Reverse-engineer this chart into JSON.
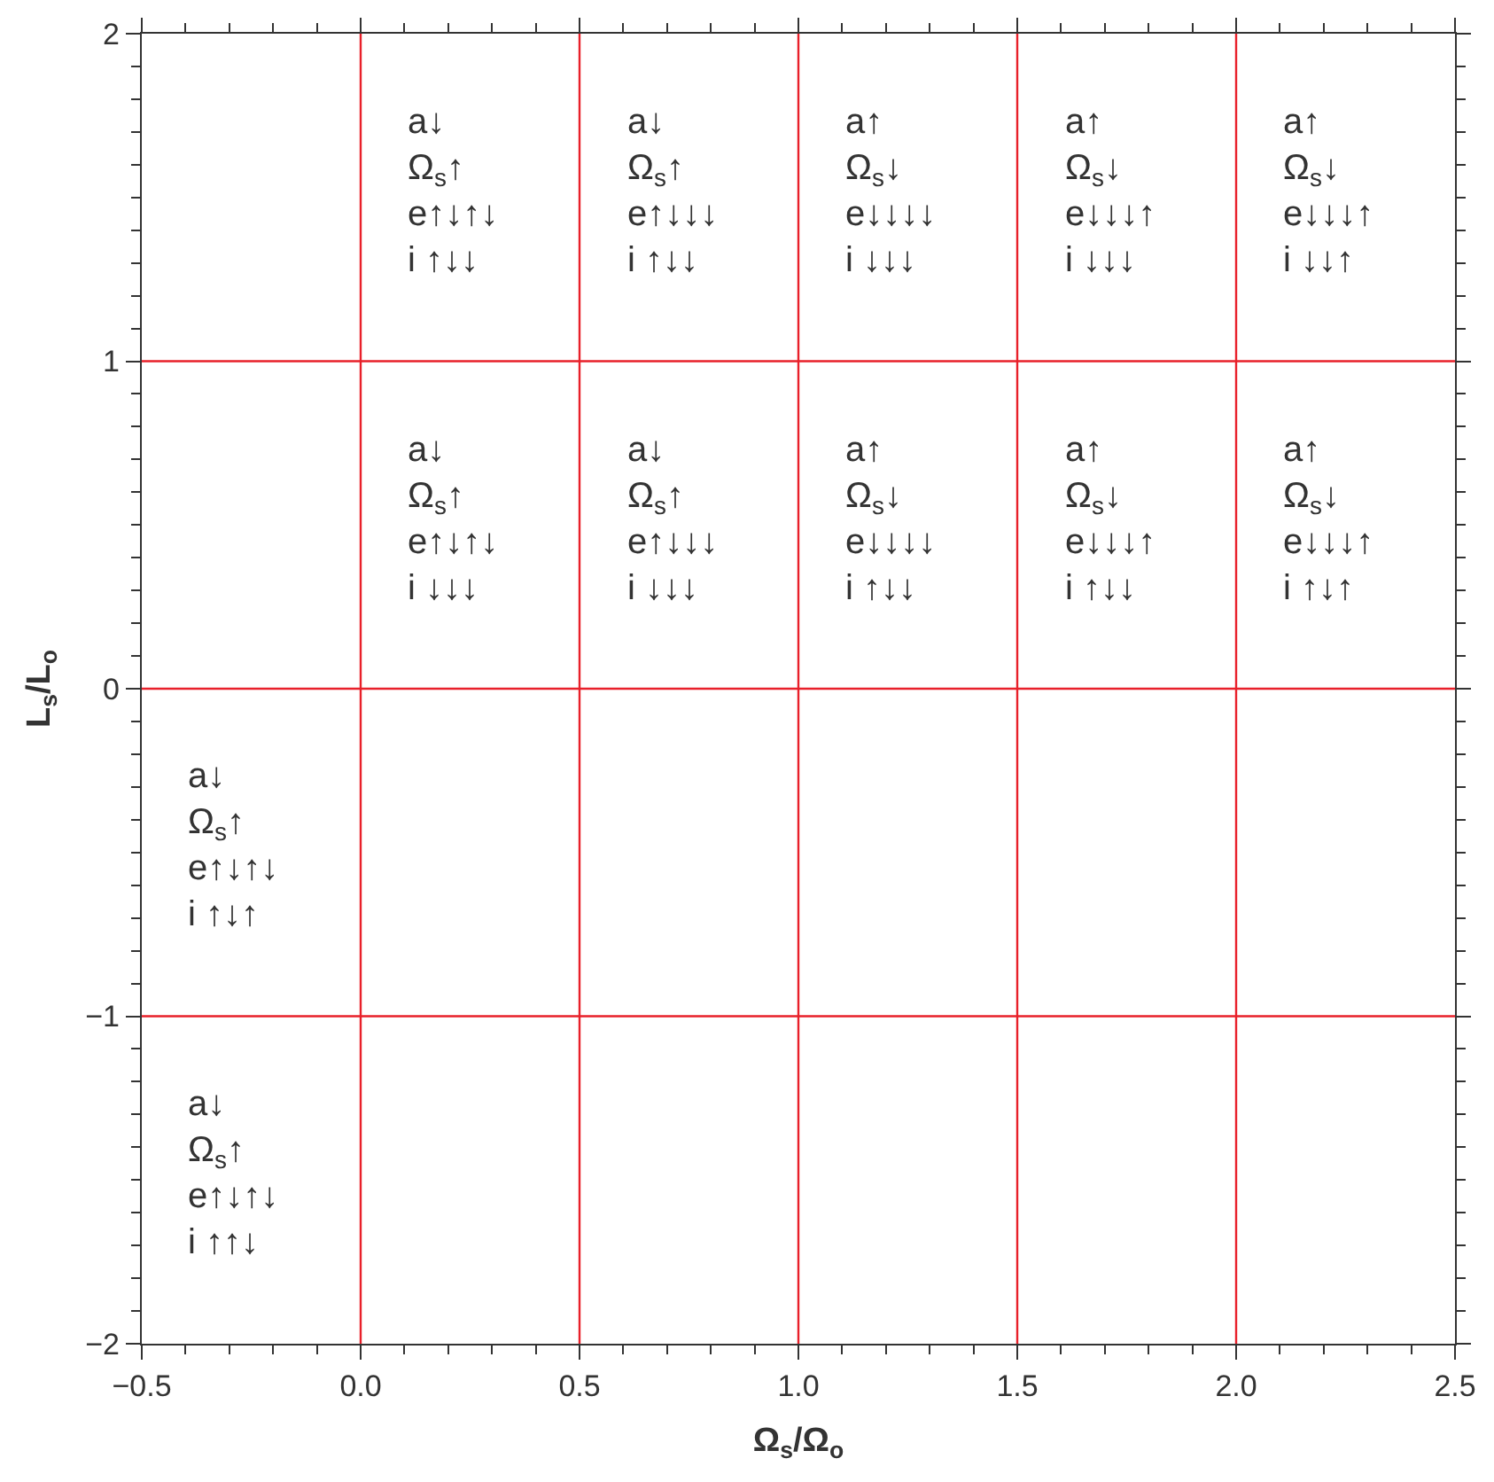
{
  "chart_data": {
    "type": "scatter",
    "xlabel": "Ω$_{s}$/Ω$_{o}$",
    "ylabel": "L$_{s}$/L$_{o}$",
    "xlim": [
      -0.5,
      2.5
    ],
    "ylim": [
      -2,
      2
    ],
    "xticks": [
      {
        "value": -0.5,
        "label": "−0.5"
      },
      {
        "value": 0,
        "label": "0.0"
      },
      0.5,
      {
        "value": 1,
        "label": "1.0"
      },
      1.5,
      {
        "value": 2,
        "label": "2.0"
      },
      2.5
    ],
    "yticks": [
      {
        "value": -2,
        "label": "−2"
      },
      {
        "value": -1,
        "label": "−1"
      },
      0,
      1,
      2
    ],
    "ref_lines": [
      {
        "axis": "x",
        "value": 0,
        "color": "#e8202a"
      },
      {
        "axis": "x",
        "value": 0.5,
        "color": "#e8202a"
      },
      {
        "axis": "x",
        "value": 1,
        "color": "#e8202a"
      },
      {
        "axis": "x",
        "value": 1.5,
        "color": "#e8202a"
      },
      {
        "axis": "x",
        "value": 2,
        "color": "#e8202a"
      },
      {
        "axis": "y",
        "value": 1,
        "color": "#e8202a"
      },
      {
        "axis": "y",
        "value": 0,
        "color": "#e8202a"
      },
      {
        "axis": "y",
        "value": -1,
        "color": "#e8202a"
      }
    ],
    "annotations": [
      "a↓\nΩ$_{s}$↑\ne↑↓↑↓\ni ↑↓↓",
      "a↓\nΩ$_{s}$↑\ne↑↓↓↓\ni ↑↓↓",
      "a↑\nΩ$_{s}$↓\ne↓↓↓↓\ni ↓↓↓",
      "a↑\nΩ$_{s}$↓\ne↓↓↓↑\ni ↓↓↓",
      "a↑\nΩ$_{s}$↓\ne↓↓↓↑\ni ↓↓↑",
      "a↓\nΩ$_{s}$↑\ne↑↓↑↓\ni ↓↓↓",
      "a↓\nΩ$_{s}$↑\ne↑↓↓↓\ni ↓↓↓",
      "a↑\nΩ$_{s}$↓\ne↓↓↓↓\ni ↑↓↓",
      "a↑\nΩ$_{s}$↓\ne↓↓↓↑\ni ↑↓↓",
      "a↑\nΩ$_{s}$↓\ne↓↓↓↑\ni ↑↓↑",
      "a↓\nΩ$_{s}$↑\ne↑↓↑↓\ni ↑↓↑",
      "a↓\nΩ$_{s}$↑\ne↑↓↑↓\ni ↑↑↓"
    ]
  }
}
